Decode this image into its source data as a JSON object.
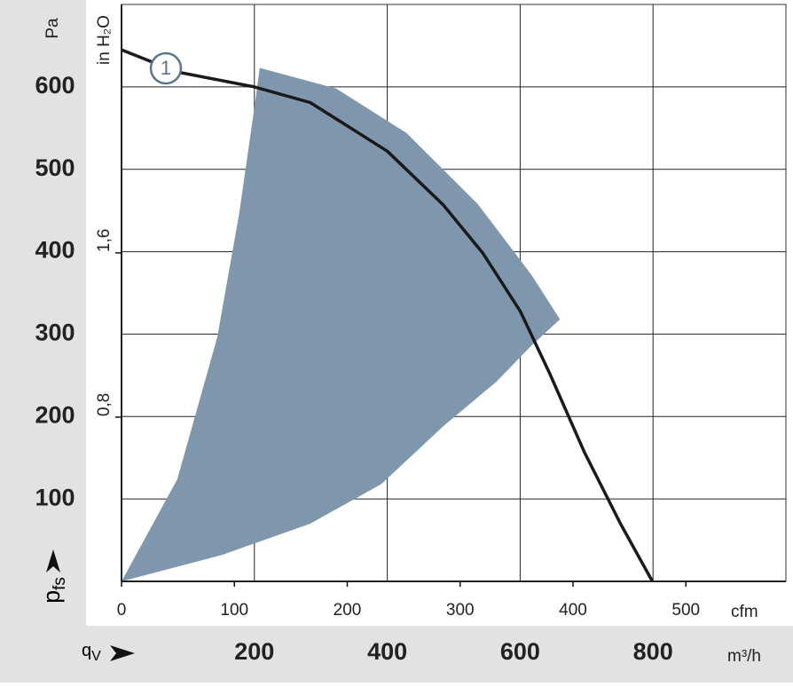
{
  "chart_data": {
    "type": "line",
    "y_label": {
      "main": "p",
      "sub": "fs"
    },
    "y_unit": "Pa",
    "x_label": {
      "main": "q",
      "sub": "V"
    },
    "x_unit": "m³/h",
    "x2_unit": "cfm",
    "y2_unit": "in H₂O",
    "xlim": [
      0,
      1000
    ],
    "xticks": [
      200,
      400,
      600,
      800
    ],
    "ylim": [
      0,
      700
    ],
    "yticks": [
      100,
      200,
      300,
      400,
      500,
      600
    ],
    "x2lim": [
      0,
      588.6
    ],
    "x2ticks": [
      0,
      100,
      200,
      300,
      400,
      500
    ],
    "y2lim": [
      0,
      2.81
    ],
    "y2ticks": [
      {
        "value": 0.8,
        "label": "0,8"
      },
      {
        "value": 1.6,
        "label": "1,6"
      }
    ],
    "grid": true,
    "area": {
      "color": "#7f97ad",
      "x": [
        0,
        84,
        144,
        177,
        200,
        208,
        323,
        429,
        536,
        617,
        660,
        617,
        564,
        484,
        391,
        284,
        151,
        0
      ],
      "values": [
        0,
        124,
        296,
        446,
        575,
        623,
        598,
        544,
        458,
        372,
        318,
        286,
        242,
        188,
        118,
        70,
        32,
        0
      ]
    },
    "series": [
      {
        "name": "1",
        "color": "#1a1a1a",
        "x": [
          0,
          84,
          200,
          284,
          400,
          484,
          544,
          600,
          644,
          697,
          751,
          799
        ],
        "values": [
          645,
          618,
          600,
          581,
          522,
          457,
          398,
          328,
          253,
          156,
          70,
          0
        ]
      }
    ]
  }
}
